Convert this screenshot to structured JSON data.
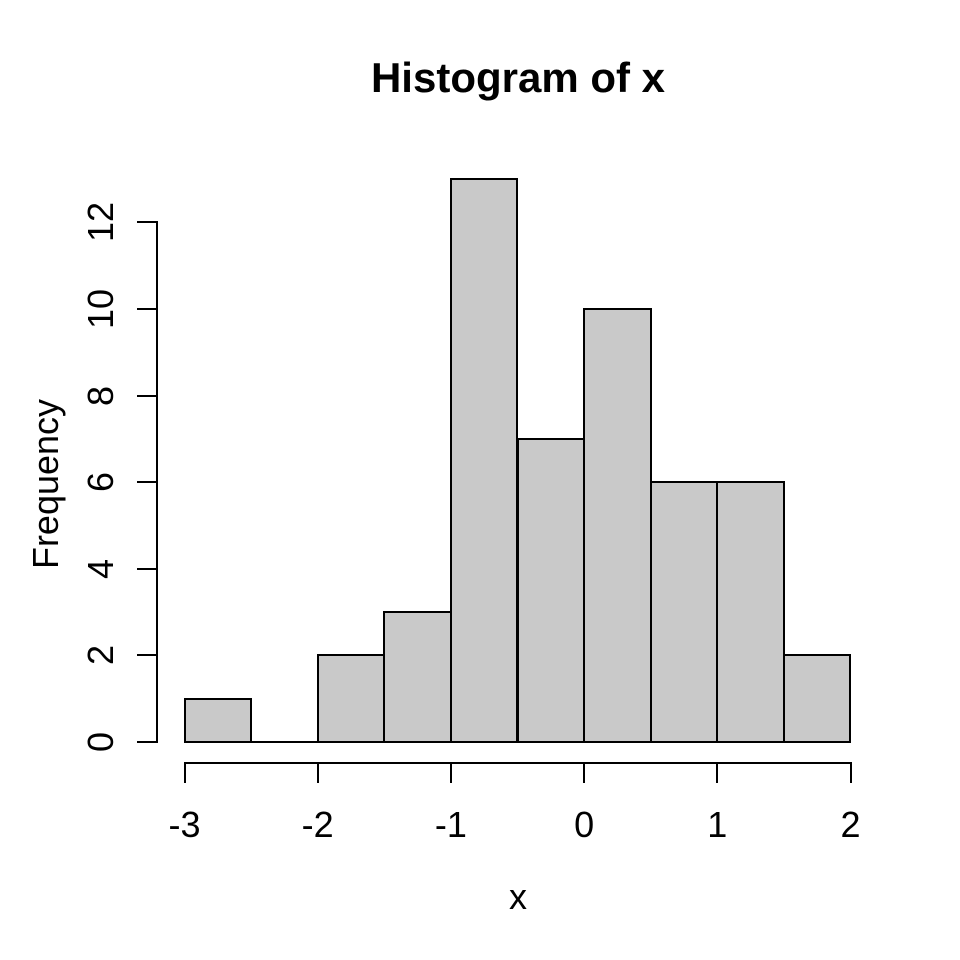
{
  "chart_data": {
    "type": "bar",
    "subtype": "histogram",
    "title": "Histogram of x",
    "xlabel": "x",
    "ylabel": "Frequency",
    "breaks": [
      -3,
      -2.5,
      -2,
      -1.5,
      -1,
      -0.5,
      0,
      0.5,
      1,
      1.5,
      2
    ],
    "counts": [
      1,
      0,
      2,
      3,
      13,
      7,
      10,
      6,
      6,
      2
    ],
    "xlim": [
      -3,
      2
    ],
    "ylim": [
      0,
      13
    ],
    "x_ticks": [
      -3,
      -2,
      -1,
      0,
      1,
      2
    ],
    "y_ticks": [
      0,
      2,
      4,
      6,
      8,
      10,
      12
    ],
    "x_tick_labels": [
      "-3",
      "-2",
      "-1",
      "0",
      "1",
      "2"
    ],
    "y_tick_labels": [
      "0",
      "2",
      "4",
      "6",
      "8",
      "10",
      "12"
    ],
    "grid": false,
    "legend_position": "none",
    "bar_fill": "#C9C9C9",
    "bar_border": "#000000",
    "text_color": "#000000",
    "background": "#FFFFFF"
  }
}
